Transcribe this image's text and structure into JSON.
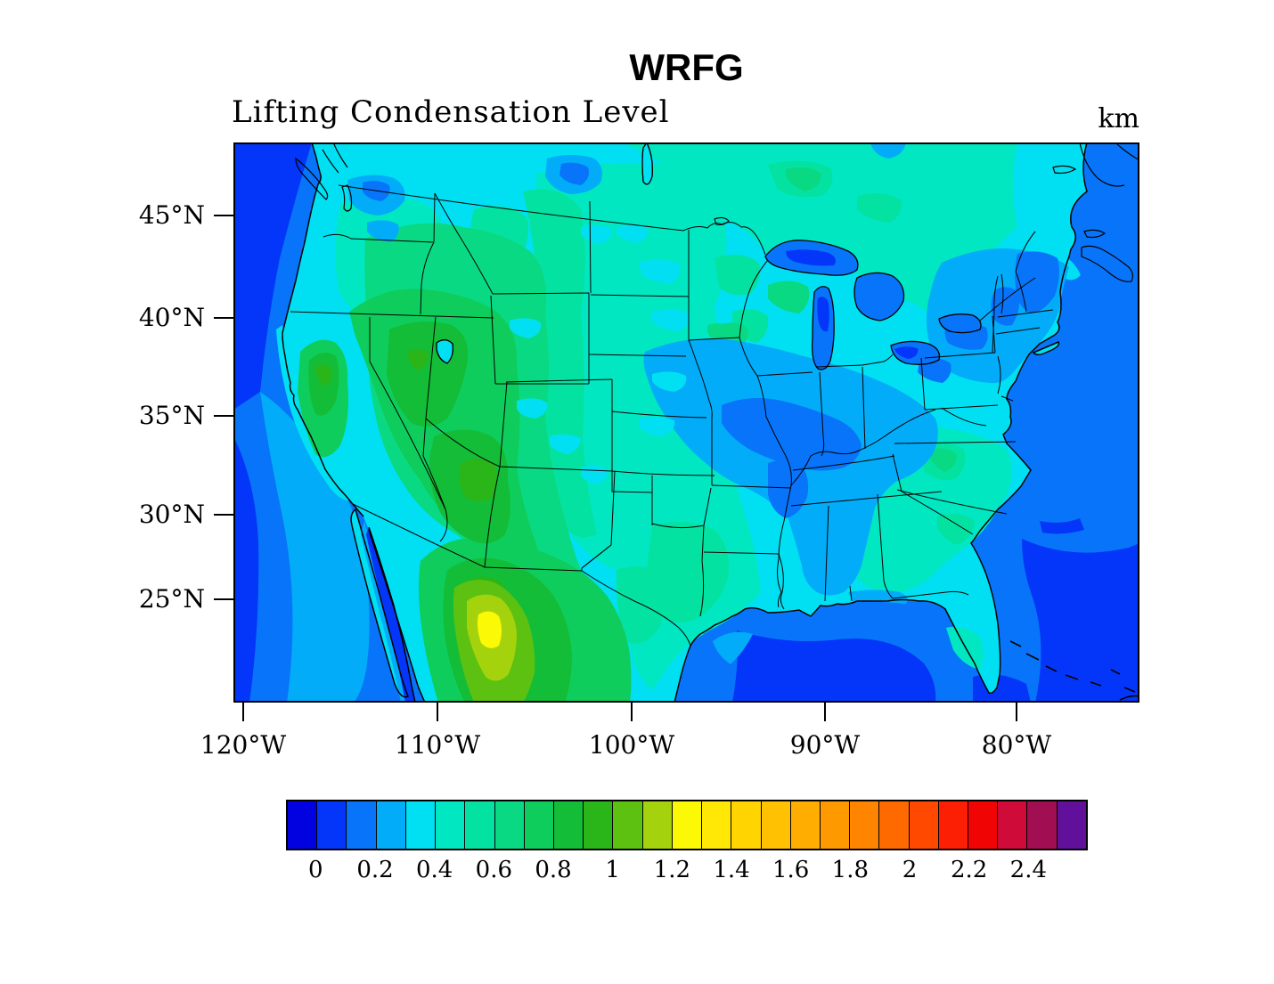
{
  "header": {
    "title": "WRFG",
    "subtitle": "Lifting Condensation Level",
    "units_label": "km"
  },
  "axes": {
    "x_ticks": [
      "120°W",
      "110°W",
      "100°W",
      "90°W",
      "80°W"
    ],
    "y_ticks": [
      "45°N",
      "40°N",
      "35°N",
      "30°N",
      "25°N"
    ]
  },
  "colorbar": {
    "tick_labels": [
      "0",
      "0.2",
      "0.4",
      "0.6",
      "0.8",
      "1",
      "1.2",
      "1.4",
      "1.6",
      "1.8",
      "2",
      "2.2",
      "2.4"
    ],
    "cell_colors": [
      "#0202e0",
      "#0336f8",
      "#0874fa",
      "#02acf8",
      "#01e0f2",
      "#00e7c2",
      "#04e2a2",
      "#0ad983",
      "#0fcd5c",
      "#13bd38",
      "#2ab519",
      "#5cc110",
      "#a4d30e",
      "#fbf906",
      "#ffe805",
      "#ffd400",
      "#ffc102",
      "#ffad00",
      "#ff9900",
      "#ff8500",
      "#ff6a00",
      "#ff4800",
      "#fc1f03",
      "#f00404",
      "#cf0b3a",
      "#a20e52",
      "#61109b"
    ]
  },
  "chart_data": {
    "type": "filled_contour_map",
    "title": "WRFG",
    "variable": "Lifting Condensation Level",
    "units": "km",
    "region": "Continental United States with state borders, Lambert conformal projection",
    "x_axis": {
      "label_ticks_deg_west": [
        120,
        110,
        100,
        90,
        80
      ]
    },
    "y_axis": {
      "label_ticks_deg_north": [
        45,
        40,
        35,
        30,
        25
      ]
    },
    "contour_interval_km": 0.1,
    "colorbar_labeled_levels_km": [
      0,
      0.2,
      0.4,
      0.6,
      0.8,
      1,
      1.2,
      1.4,
      1.6,
      1.8,
      2,
      2.2,
      2.4
    ],
    "colorbar_cells": 27,
    "field_summary": [
      {
        "region": "Pacific, Atlantic, Gulf of Mexico ocean areas",
        "approx_value_km": "0.1-0.3"
      },
      {
        "region": "Great Lakes, New England, Missouri-Kentucky-Tennessee corridor, Mississippi/Alabama",
        "approx_value_km": "0.2-0.4"
      },
      {
        "region": "Eastern and central US, Florida, plains",
        "approx_value_km": "0.4-0.6"
      },
      {
        "region": "Upper Midwest and Canada near border",
        "approx_value_km": "0.5-0.7"
      },
      {
        "region": "Intermountain West (NV, UT, AZ, NM, CA interior)",
        "approx_value_km": "0.7-1.0"
      },
      {
        "region": "Northern Mexico / Sierra Madre highlands (maximum)",
        "approx_value_km": "1.2-1.4"
      }
    ]
  }
}
